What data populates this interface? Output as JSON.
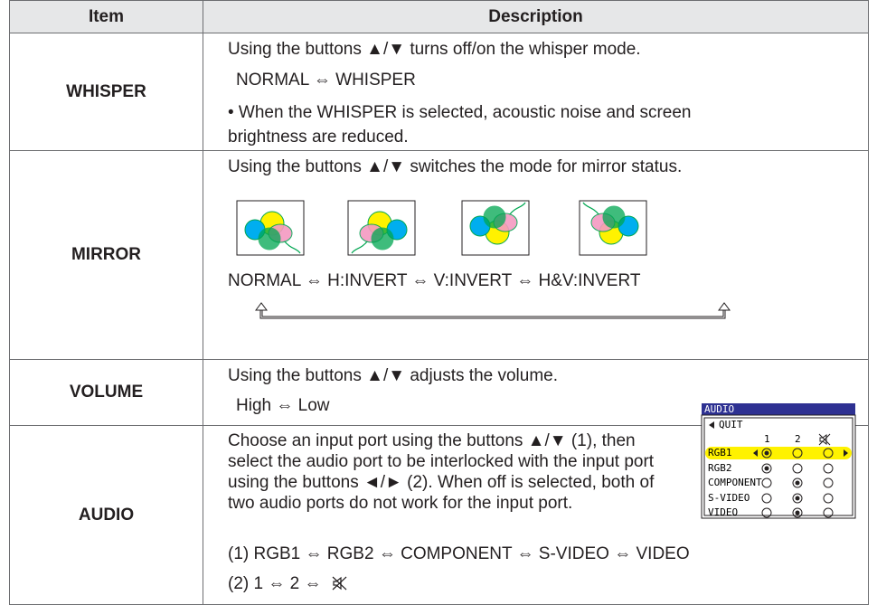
{
  "table": {
    "headers": [
      "Item",
      "Description"
    ],
    "rows": [
      {
        "item": "WHISPER",
        "lines": [
          "Using the buttons ▲/▼ turns off/on the whisper mode.",
          "NORMAL ⇔ WHISPER",
          "• When the WHISPER is selected, acoustic noise and screen brightness are reduced."
        ]
      },
      {
        "item": "MIRROR",
        "lines": [
          "Using the buttons ▲/▼ switches the mode for mirror status.",
          "NORMAL ⇔ H:INVERT ⇔ V:INVERT ⇔ H&V:INVERT"
        ]
      },
      {
        "item": "VOLUME",
        "lines": [
          "Using the buttons ▲/▼ adjusts the volume.",
          "High ⇔ Low"
        ]
      },
      {
        "item": "AUDIO",
        "text": "Choose an input port using the buttons ▲/▼ (1), then select the audio port to be interlocked with the input port using the buttons ◄/► (2). When off is selected, both of two audio ports do not work for the input port.",
        "menu": {
          "title": "AUDIO",
          "quit": "QUIT",
          "columns": [
            "1",
            "2"
          ],
          "rows": [
            "RGB1",
            "RGB2",
            "COMPONENT",
            "S-VIDEO",
            "VIDEO"
          ]
        },
        "lines": [
          "(1)  RGB1 ⇔ RGB2 ⇔ COMPONENT ⇔ S-VIDEO ⇔ VIDEO",
          "(2)  1 ⇔ 2 ⇔"
        ]
      }
    ]
  }
}
